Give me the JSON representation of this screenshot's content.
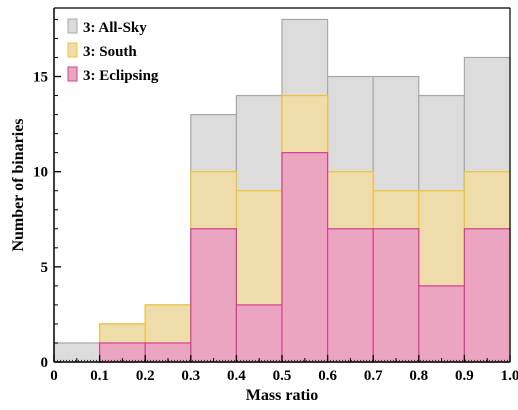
{
  "chart_data": {
    "type": "bar",
    "subtype": "overlapping-histogram",
    "title": "",
    "xlabel": "Mass ratio",
    "ylabel": "Number of binaries",
    "xlim": [
      0,
      1.0
    ],
    "ylim": [
      0,
      18.6
    ],
    "bin_edges": [
      0,
      0.1,
      0.2,
      0.3,
      0.4,
      0.5,
      0.6,
      0.7,
      0.8,
      0.9,
      1.0
    ],
    "x_ticks": [
      0,
      0.1,
      0.2,
      0.3,
      0.4,
      0.5,
      0.6,
      0.7,
      0.8,
      0.9,
      1.0
    ],
    "x_tick_labels": [
      "0",
      "0.1",
      "0.2",
      "0.3",
      "0.4",
      "0.5",
      "0.6",
      "0.7",
      "0.8",
      "0.9",
      "1.0"
    ],
    "y_ticks": [
      0,
      5,
      10,
      15
    ],
    "y_tick_labels": [
      "0",
      "5",
      "10",
      "15"
    ],
    "grid": false,
    "legend_position": "top-left",
    "series": [
      {
        "name": "3: All-Sky",
        "values": [
          1,
          2,
          3,
          13,
          14,
          18,
          15,
          15,
          14,
          16
        ],
        "fill": "#dcdcdc",
        "stroke": "#a8a8a8"
      },
      {
        "name": "3: South",
        "values": [
          0,
          2,
          3,
          10,
          9,
          14,
          10,
          9,
          9,
          10
        ],
        "fill": "#eedcaa",
        "stroke": "#f0c23a"
      },
      {
        "name": "3: Eclipsing",
        "values": [
          0,
          1,
          1,
          7,
          3,
          11,
          7,
          7,
          4,
          7
        ],
        "fill": "#eba5c1",
        "stroke": "#d43f90"
      }
    ]
  }
}
